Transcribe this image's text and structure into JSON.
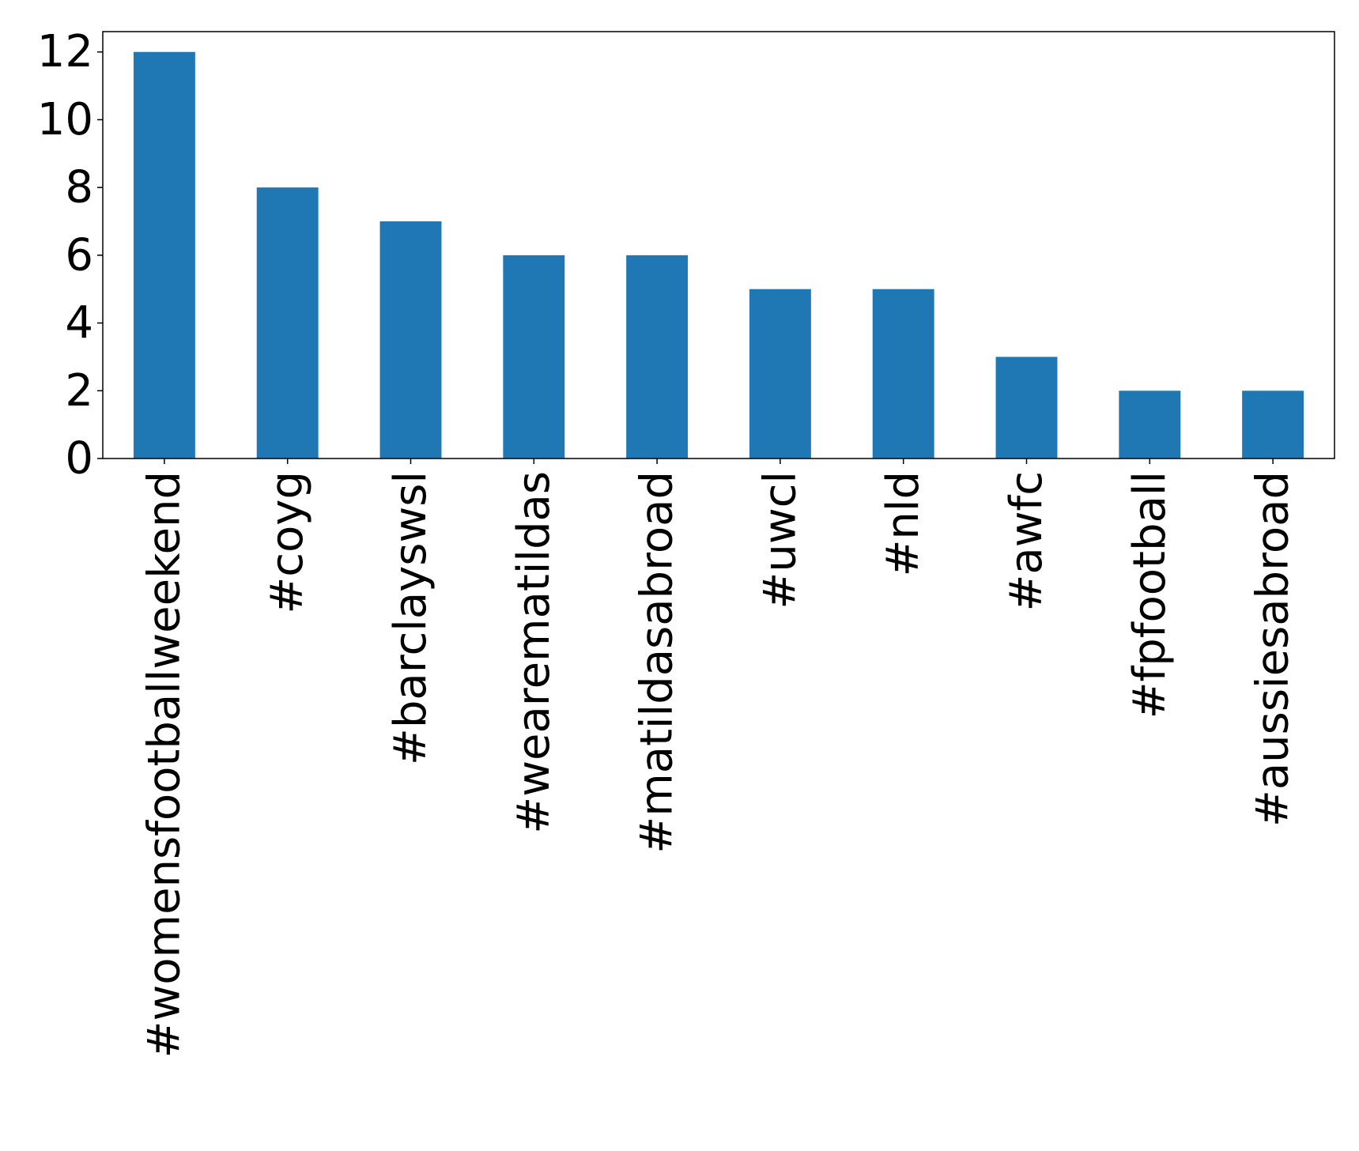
{
  "chart_data": {
    "type": "bar",
    "categories": [
      "#womensfootballweekend",
      "#coyg",
      "#barclayswsl",
      "#wearematildas",
      "#matildasabroad",
      "#uwcl",
      "#nld",
      "#awfc",
      "#fpfootball",
      "#aussiesabroad"
    ],
    "values": [
      12,
      8,
      7,
      6,
      6,
      5,
      5,
      3,
      2,
      2
    ],
    "title": "",
    "xlabel": "",
    "ylabel": "",
    "ylim": [
      0,
      12.6
    ],
    "yticks": [
      0,
      2,
      4,
      6,
      8,
      10,
      12
    ],
    "bar_color": "#1f77b4",
    "grid": false,
    "legend": "none"
  }
}
